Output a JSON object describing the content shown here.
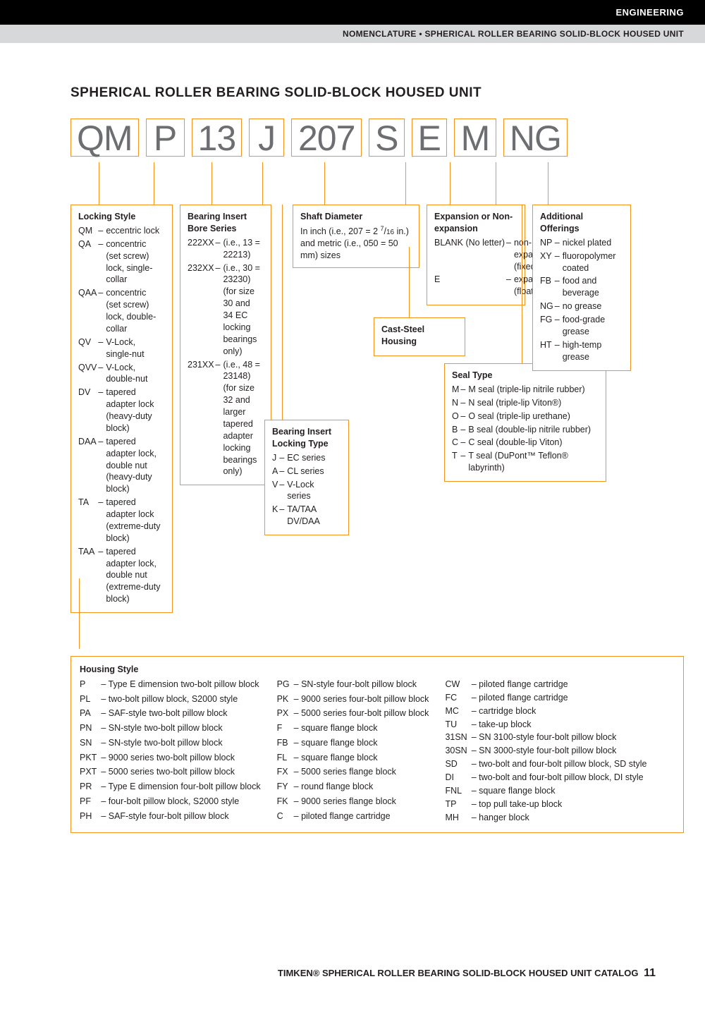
{
  "header": {
    "category": "ENGINEERING",
    "breadcrumb": "NOMENCLATURE • SPHERICAL ROLLER BEARING SOLID-BLOCK HOUSED UNIT"
  },
  "title": "SPHERICAL ROLLER BEARING SOLID-BLOCK HOUSED UNIT",
  "code_parts": [
    "QM",
    "P",
    "13",
    "J",
    "207",
    "S",
    "E",
    "M",
    "NG"
  ],
  "colors": {
    "accent": "#f7941d",
    "code_text": "#6d6e71"
  },
  "locking_style": {
    "title": "Locking Style",
    "items": [
      [
        "QM",
        "eccentric lock"
      ],
      [
        "QA",
        "concentric (set screw) lock, single-collar"
      ],
      [
        "QAA",
        "concentric (set screw) lock, double-collar"
      ],
      [
        "QV",
        "V-Lock, single-nut"
      ],
      [
        "QVV",
        "V-Lock, double-nut"
      ],
      [
        "DV",
        "tapered adapter lock (heavy-duty block)"
      ],
      [
        "DAA",
        "tapered adapter lock, double nut (heavy-duty block)"
      ],
      [
        "TA",
        "tapered adapter lock (extreme-duty block)"
      ],
      [
        "TAA",
        "tapered adapter lock, double nut (extreme-duty block)"
      ]
    ]
  },
  "bore_series": {
    "title": "Bearing Insert Bore Series",
    "items": [
      [
        "222XX",
        "(i.e., 13 = 22213)"
      ],
      [
        "232XX",
        "(i.e., 30 = 23230) (for size 30 and 34 EC locking bearings only)"
      ],
      [
        "231XX",
        "(i.e., 48 = 23148) (for size 32 and larger tapered adapter locking bearings only)"
      ]
    ]
  },
  "locking_type": {
    "title": "Bearing Insert Locking Type",
    "items": [
      [
        "J",
        "EC series"
      ],
      [
        "A",
        "CL series"
      ],
      [
        "V",
        "V-Lock series"
      ],
      [
        "K",
        "TA/TAA DV/DAA"
      ]
    ]
  },
  "shaft_diameter": {
    "title": "Shaft Diameter",
    "text_pre": "In inch (i.e., 207 = 2 ",
    "frac_num": "7",
    "frac_den": "16",
    "text_post": " in.) and metric (i.e., 050 = 50 mm) sizes"
  },
  "cast_steel": {
    "title": "Cast-Steel Housing"
  },
  "expansion": {
    "title": "Expansion or Non-expansion",
    "items": [
      [
        "BLANK (No letter)",
        "non-expansion (fixed)"
      ],
      [
        "E",
        "expansion (floating)"
      ]
    ]
  },
  "seal_type": {
    "title": "Seal Type",
    "items": [
      [
        "M",
        "M seal (triple-lip nitrile rubber)"
      ],
      [
        "N",
        "N seal (triple-lip Viton®)"
      ],
      [
        "O",
        "O seal (triple-lip urethane)"
      ],
      [
        "B",
        "B seal (double-lip nitrile rubber)"
      ],
      [
        "C",
        "C seal (double-lip Viton)"
      ],
      [
        "T",
        "T seal (DuPont™ Teflon® labyrinth)"
      ]
    ]
  },
  "additional": {
    "title": "Additional Offerings",
    "items": [
      [
        "NP",
        "nickel plated"
      ],
      [
        "XY",
        "fluoropolymer coated"
      ],
      [
        "FB",
        "food and beverage"
      ],
      [
        "NG",
        "no grease"
      ],
      [
        "FG",
        "food-grade grease"
      ],
      [
        "HT",
        "high-temp grease"
      ]
    ]
  },
  "housing": {
    "title": "Housing Style",
    "col1": [
      [
        "P",
        "Type E dimension two-bolt pillow block"
      ],
      [
        "PL",
        "two-bolt pillow block, S2000 style"
      ],
      [
        "PA",
        "SAF-style two-bolt pillow block"
      ],
      [
        "PN",
        "SN-style two-bolt pillow block"
      ],
      [
        "SN",
        "SN-style two-bolt pillow block"
      ],
      [
        "PKT",
        "9000 series two-bolt pillow block"
      ],
      [
        "PXT",
        "5000 series two-bolt pillow block"
      ],
      [
        "PR",
        "Type E dimension four-bolt pillow block"
      ],
      [
        "PF",
        "four-bolt pillow block, S2000 style"
      ],
      [
        "PH",
        "SAF-style four-bolt pillow block"
      ]
    ],
    "col2": [
      [
        "PG",
        "SN-style four-bolt pillow block"
      ],
      [
        "PK",
        "9000 series four-bolt pillow block"
      ],
      [
        "PX",
        "5000 series four-bolt pillow block"
      ],
      [
        "F",
        "square flange block"
      ],
      [
        "FB",
        "square flange block"
      ],
      [
        "FL",
        "square flange block"
      ],
      [
        "FX",
        "5000 series flange block"
      ],
      [
        "FY",
        "round flange block"
      ],
      [
        "FK",
        "9000 series flange block"
      ],
      [
        "C",
        "piloted flange cartridge"
      ]
    ],
    "col3": [
      [
        "CW",
        "piloted flange cartridge"
      ],
      [
        "FC",
        "piloted flange cartridge"
      ],
      [
        "MC",
        "cartridge block"
      ],
      [
        "TU",
        "take-up block"
      ],
      [
        "31SN",
        "SN 3100-style four-bolt pillow block"
      ],
      [
        "30SN",
        "SN 3000-style four-bolt pillow block"
      ],
      [
        "SD",
        "two-bolt and four-bolt pillow block, SD style"
      ],
      [
        "DI",
        "two-bolt and four-bolt pillow block, DI style"
      ],
      [
        "FNL",
        "square flange block"
      ],
      [
        "TP",
        "top pull take-up block"
      ],
      [
        "MH",
        "hanger block"
      ]
    ]
  },
  "footer": {
    "text": "TIMKEN® SPHERICAL ROLLER BEARING SOLID-BLOCK HOUSED UNIT CATALOG",
    "page": "11"
  }
}
